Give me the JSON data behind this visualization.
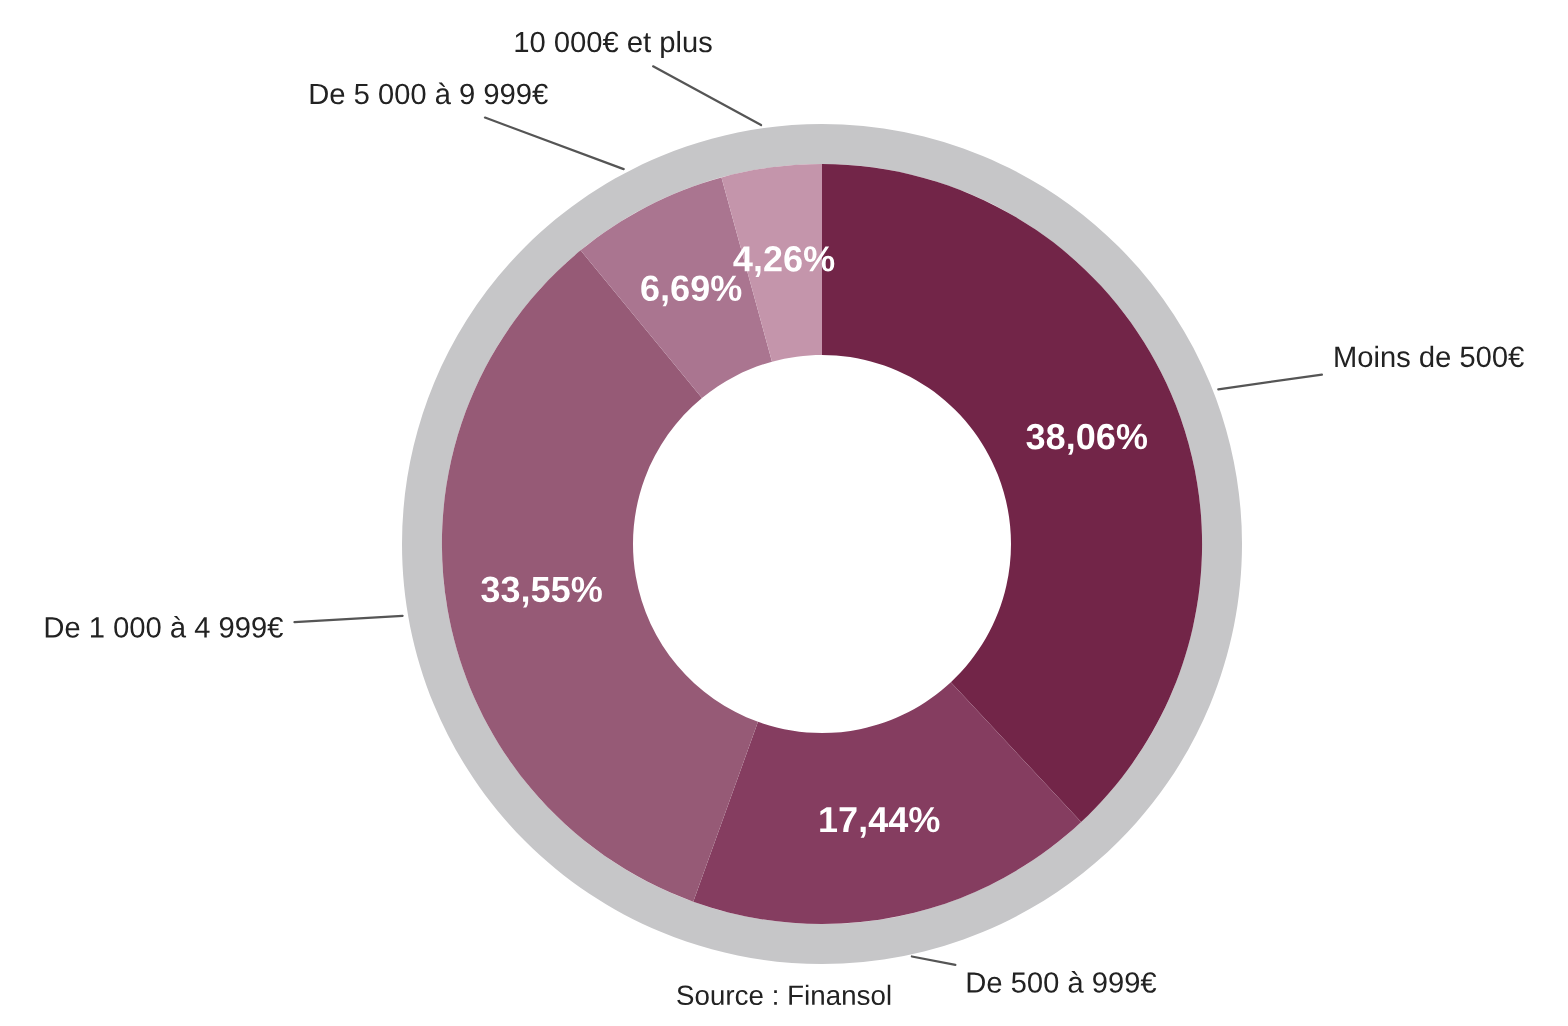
{
  "chart_data": {
    "type": "donut",
    "categories": [
      "Moins de 500€",
      "De 500 à 999€",
      "De 1 000 à 4 999€",
      "De 5 000 à 9 999€",
      "10 000€ et plus"
    ],
    "values": [
      38.06,
      17.44,
      33.55,
      6.69,
      4.26
    ],
    "value_labels": [
      "38,06%",
      "17,44%",
      "33,55%",
      "6,69%",
      "4,26%"
    ],
    "colors": [
      "#722548",
      "#853d60",
      "#965a76",
      "#aa7590",
      "#c495ab"
    ],
    "annotations": [
      "Source : Finansol"
    ]
  }
}
